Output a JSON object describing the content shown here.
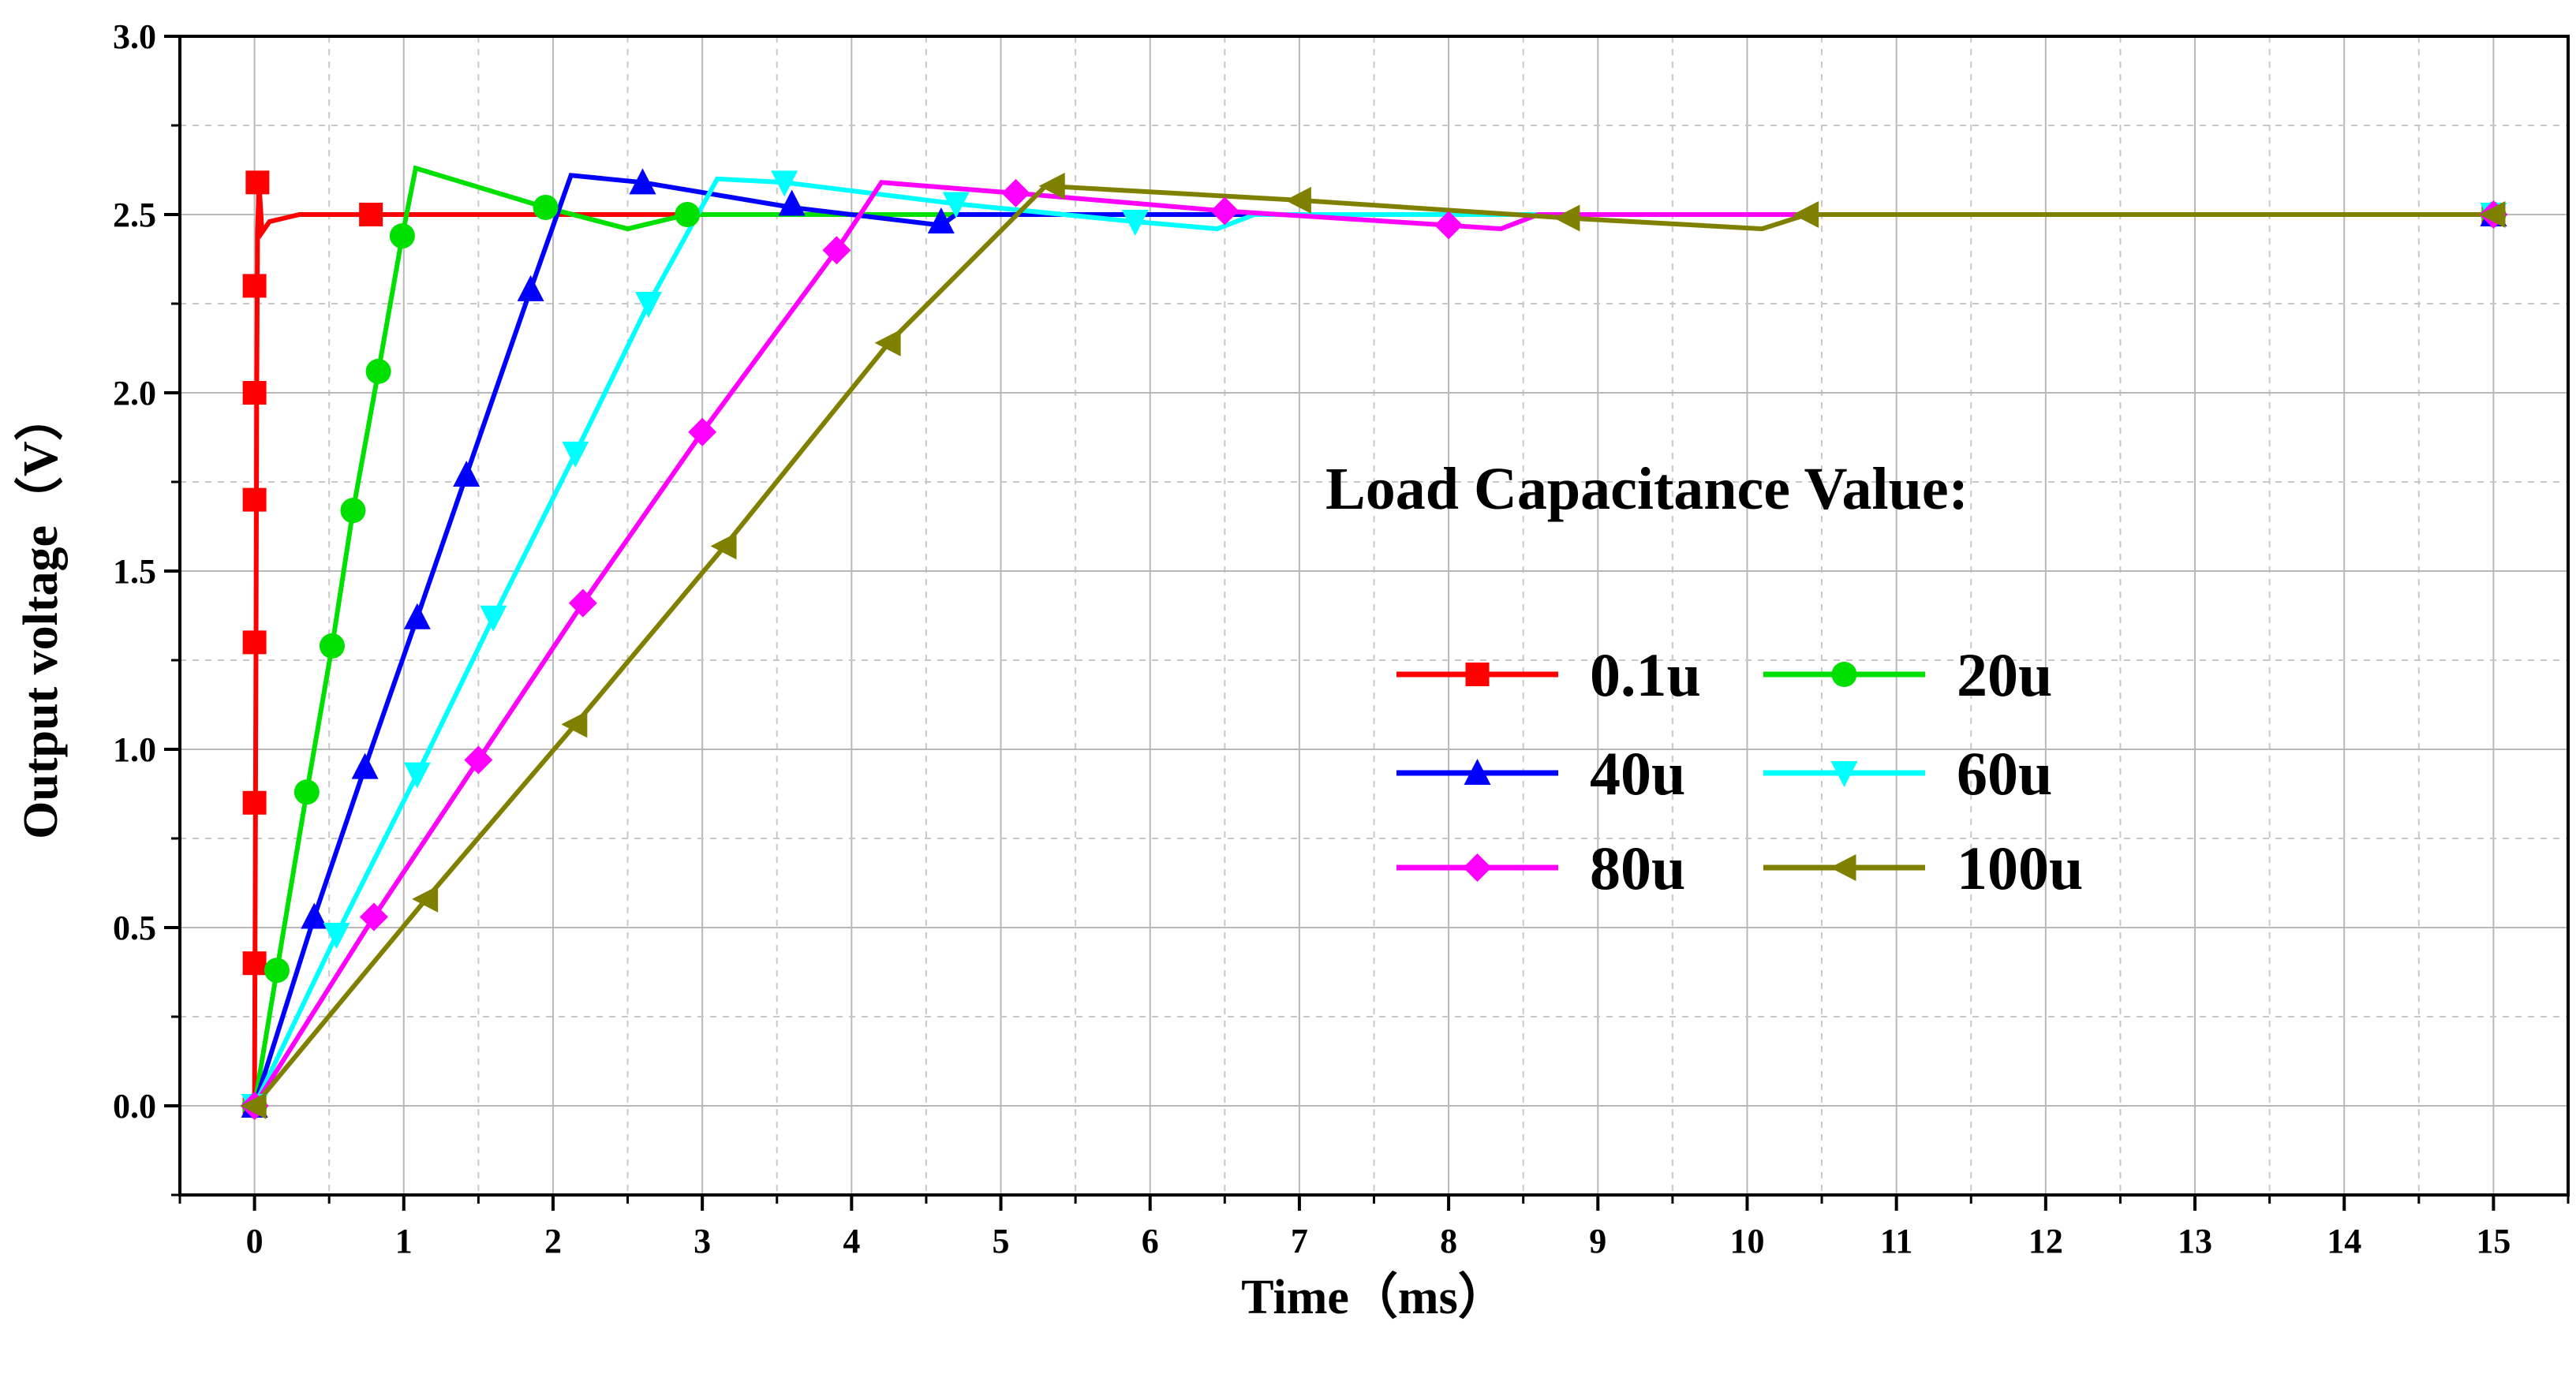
{
  "chart_data": {
    "type": "line",
    "title": "",
    "xlabel": "Time（ms）",
    "ylabel": "Output voltage（V）",
    "xlim": [
      -0.5,
      15.5
    ],
    "ylim": [
      -0.25,
      3.0
    ],
    "x_ticks": [
      "0",
      "1",
      "2",
      "3",
      "4",
      "5",
      "6",
      "7",
      "8",
      "9",
      "10",
      "11",
      "12",
      "13",
      "14",
      "15"
    ],
    "y_ticks": [
      "0.0",
      "0.5",
      "1.0",
      "1.5",
      "2.0",
      "2.5",
      "3.0"
    ],
    "grid": true,
    "legend_title": "Load Capacitance Value:",
    "legend_position": "right",
    "series": [
      {
        "name": "0.1u",
        "color": "#ff0000",
        "marker": "square",
        "line": [
          [
            0,
            0
          ],
          [
            0.005,
            0.6
          ],
          [
            0.01,
            1.3
          ],
          [
            0.015,
            2.0
          ],
          [
            0.02,
            2.45
          ],
          [
            0.03,
            2.59
          ],
          [
            0.05,
            2.45
          ],
          [
            0.1,
            2.48
          ],
          [
            0.3,
            2.5
          ],
          [
            15,
            2.5
          ]
        ],
        "markers": [
          [
            0,
            0.4
          ],
          [
            0,
            0.85
          ],
          [
            0,
            1.3
          ],
          [
            0,
            1.7
          ],
          [
            0,
            2.0
          ],
          [
            0,
            2.3
          ],
          [
            0.02,
            2.59
          ],
          [
            0.78,
            2.5
          ],
          [
            15,
            2.5
          ]
        ]
      },
      {
        "name": "20u",
        "color": "#00e000",
        "marker": "circle",
        "line": [
          [
            0,
            0
          ],
          [
            0.15,
            0.38
          ],
          [
            0.35,
            0.88
          ],
          [
            0.52,
            1.29
          ],
          [
            0.66,
            1.67
          ],
          [
            0.83,
            2.06
          ],
          [
            0.99,
            2.44
          ],
          [
            1.08,
            2.63
          ],
          [
            1.95,
            2.52
          ],
          [
            2.5,
            2.46
          ],
          [
            2.9,
            2.5
          ],
          [
            15,
            2.5
          ]
        ],
        "markers": [
          [
            0.15,
            0.38
          ],
          [
            0.35,
            0.88
          ],
          [
            0.52,
            1.29
          ],
          [
            0.66,
            1.67
          ],
          [
            0.83,
            2.06
          ],
          [
            0.99,
            2.44
          ],
          [
            1.95,
            2.52
          ],
          [
            2.9,
            2.5
          ],
          [
            15,
            2.5
          ]
        ]
      },
      {
        "name": "40u",
        "color": "#0000ff",
        "marker": "triangle-up",
        "line": [
          [
            0,
            0
          ],
          [
            0.4,
            0.53
          ],
          [
            0.74,
            0.95
          ],
          [
            1.09,
            1.37
          ],
          [
            1.42,
            1.77
          ],
          [
            1.85,
            2.29
          ],
          [
            2.12,
            2.61
          ],
          [
            2.6,
            2.59
          ],
          [
            3.6,
            2.52
          ],
          [
            4.6,
            2.47
          ],
          [
            4.7,
            2.5
          ],
          [
            15,
            2.5
          ]
        ],
        "markers": [
          [
            0.4,
            0.53
          ],
          [
            0.74,
            0.95
          ],
          [
            1.09,
            1.37
          ],
          [
            1.42,
            1.77
          ],
          [
            1.85,
            2.29
          ],
          [
            2.6,
            2.59
          ],
          [
            3.6,
            2.53
          ],
          [
            4.6,
            2.48
          ],
          [
            15,
            2.5
          ]
        ]
      },
      {
        "name": "60u",
        "color": "#00ffff",
        "marker": "triangle-down",
        "line": [
          [
            0,
            0
          ],
          [
            0.55,
            0.48
          ],
          [
            1.09,
            0.93
          ],
          [
            1.6,
            1.37
          ],
          [
            2.15,
            1.83
          ],
          [
            2.64,
            2.25
          ],
          [
            3.1,
            2.6
          ],
          [
            3.55,
            2.59
          ],
          [
            4.7,
            2.53
          ],
          [
            5.9,
            2.48
          ],
          [
            6.45,
            2.46
          ],
          [
            6.7,
            2.5
          ],
          [
            15,
            2.5
          ]
        ],
        "markers": [
          [
            0.55,
            0.48
          ],
          [
            1.09,
            0.93
          ],
          [
            1.6,
            1.37
          ],
          [
            2.15,
            1.83
          ],
          [
            2.64,
            2.25
          ],
          [
            3.55,
            2.59
          ],
          [
            4.7,
            2.53
          ],
          [
            5.9,
            2.48
          ],
          [
            15,
            2.5
          ]
        ]
      },
      {
        "name": "80u",
        "color": "#ff00ff",
        "marker": "diamond",
        "line": [
          [
            0,
            0
          ],
          [
            0.8,
            0.53
          ],
          [
            1.5,
            0.97
          ],
          [
            2.2,
            1.41
          ],
          [
            3.0,
            1.89
          ],
          [
            3.9,
            2.4
          ],
          [
            4.2,
            2.59
          ],
          [
            5.1,
            2.56
          ],
          [
            6.5,
            2.51
          ],
          [
            8.0,
            2.47
          ],
          [
            8.35,
            2.46
          ],
          [
            8.6,
            2.5
          ],
          [
            15,
            2.5
          ]
        ],
        "markers": [
          [
            0.8,
            0.53
          ],
          [
            1.5,
            0.97
          ],
          [
            2.2,
            1.41
          ],
          [
            3.0,
            1.89
          ],
          [
            3.9,
            2.4
          ],
          [
            5.1,
            2.56
          ],
          [
            6.5,
            2.51
          ],
          [
            8.0,
            2.47
          ],
          [
            15,
            2.5
          ]
        ]
      },
      {
        "name": "100u",
        "color": "#808000",
        "marker": "triangle-left",
        "line": [
          [
            0,
            0
          ],
          [
            1.15,
            0.58
          ],
          [
            2.15,
            1.07
          ],
          [
            3.15,
            1.57
          ],
          [
            4.25,
            2.14
          ],
          [
            5.3,
            2.58
          ],
          [
            7.0,
            2.54
          ],
          [
            8.8,
            2.49
          ],
          [
            10.1,
            2.46
          ],
          [
            10.4,
            2.5
          ],
          [
            15,
            2.5
          ]
        ],
        "markers": [
          [
            1.15,
            0.58
          ],
          [
            2.15,
            1.07
          ],
          [
            3.15,
            1.57
          ],
          [
            4.25,
            2.14
          ],
          [
            5.35,
            2.58
          ],
          [
            7.0,
            2.54
          ],
          [
            8.8,
            2.49
          ],
          [
            10.4,
            2.5
          ],
          [
            15,
            2.5
          ]
        ]
      }
    ]
  }
}
